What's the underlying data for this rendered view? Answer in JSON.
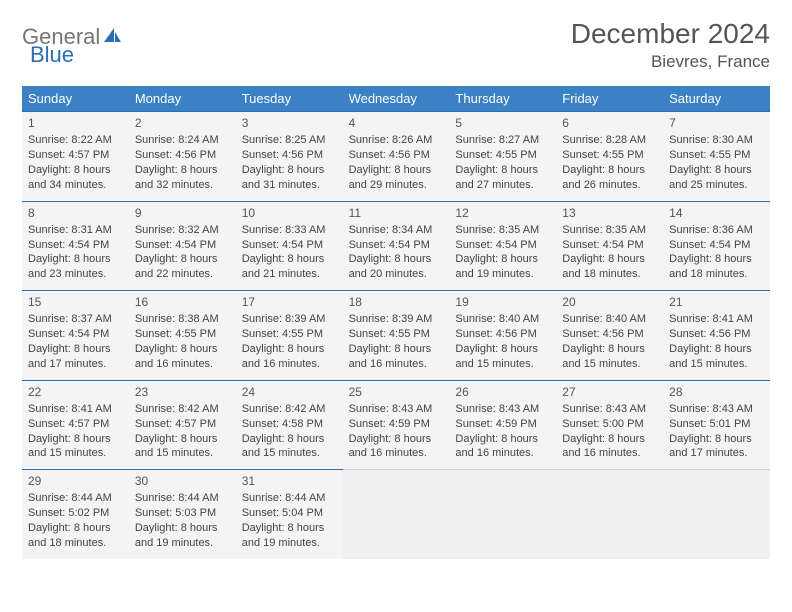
{
  "brand": {
    "part1": "General",
    "part2": "Blue"
  },
  "title": "December 2024",
  "location": "Bievres, France",
  "colors": {
    "header_bg": "#3b82c4",
    "accent": "#2c6fb0",
    "cell_bg": "#f4f4f4",
    "text": "#444444"
  },
  "weekdays": [
    "Sunday",
    "Monday",
    "Tuesday",
    "Wednesday",
    "Thursday",
    "Friday",
    "Saturday"
  ],
  "grid_columns": 7,
  "grid_rows": 5,
  "days": [
    {
      "n": "1",
      "sunrise": "8:22 AM",
      "sunset": "4:57 PM",
      "day_h": "8",
      "day_m": "34"
    },
    {
      "n": "2",
      "sunrise": "8:24 AM",
      "sunset": "4:56 PM",
      "day_h": "8",
      "day_m": "32"
    },
    {
      "n": "3",
      "sunrise": "8:25 AM",
      "sunset": "4:56 PM",
      "day_h": "8",
      "day_m": "31"
    },
    {
      "n": "4",
      "sunrise": "8:26 AM",
      "sunset": "4:56 PM",
      "day_h": "8",
      "day_m": "29"
    },
    {
      "n": "5",
      "sunrise": "8:27 AM",
      "sunset": "4:55 PM",
      "day_h": "8",
      "day_m": "27"
    },
    {
      "n": "6",
      "sunrise": "8:28 AM",
      "sunset": "4:55 PM",
      "day_h": "8",
      "day_m": "26"
    },
    {
      "n": "7",
      "sunrise": "8:30 AM",
      "sunset": "4:55 PM",
      "day_h": "8",
      "day_m": "25"
    },
    {
      "n": "8",
      "sunrise": "8:31 AM",
      "sunset": "4:54 PM",
      "day_h": "8",
      "day_m": "23"
    },
    {
      "n": "9",
      "sunrise": "8:32 AM",
      "sunset": "4:54 PM",
      "day_h": "8",
      "day_m": "22"
    },
    {
      "n": "10",
      "sunrise": "8:33 AM",
      "sunset": "4:54 PM",
      "day_h": "8",
      "day_m": "21"
    },
    {
      "n": "11",
      "sunrise": "8:34 AM",
      "sunset": "4:54 PM",
      "day_h": "8",
      "day_m": "20"
    },
    {
      "n": "12",
      "sunrise": "8:35 AM",
      "sunset": "4:54 PM",
      "day_h": "8",
      "day_m": "19"
    },
    {
      "n": "13",
      "sunrise": "8:35 AM",
      "sunset": "4:54 PM",
      "day_h": "8",
      "day_m": "18"
    },
    {
      "n": "14",
      "sunrise": "8:36 AM",
      "sunset": "4:54 PM",
      "day_h": "8",
      "day_m": "18"
    },
    {
      "n": "15",
      "sunrise": "8:37 AM",
      "sunset": "4:54 PM",
      "day_h": "8",
      "day_m": "17"
    },
    {
      "n": "16",
      "sunrise": "8:38 AM",
      "sunset": "4:55 PM",
      "day_h": "8",
      "day_m": "16"
    },
    {
      "n": "17",
      "sunrise": "8:39 AM",
      "sunset": "4:55 PM",
      "day_h": "8",
      "day_m": "16"
    },
    {
      "n": "18",
      "sunrise": "8:39 AM",
      "sunset": "4:55 PM",
      "day_h": "8",
      "day_m": "16"
    },
    {
      "n": "19",
      "sunrise": "8:40 AM",
      "sunset": "4:56 PM",
      "day_h": "8",
      "day_m": "15"
    },
    {
      "n": "20",
      "sunrise": "8:40 AM",
      "sunset": "4:56 PM",
      "day_h": "8",
      "day_m": "15"
    },
    {
      "n": "21",
      "sunrise": "8:41 AM",
      "sunset": "4:56 PM",
      "day_h": "8",
      "day_m": "15"
    },
    {
      "n": "22",
      "sunrise": "8:41 AM",
      "sunset": "4:57 PM",
      "day_h": "8",
      "day_m": "15"
    },
    {
      "n": "23",
      "sunrise": "8:42 AM",
      "sunset": "4:57 PM",
      "day_h": "8",
      "day_m": "15"
    },
    {
      "n": "24",
      "sunrise": "8:42 AM",
      "sunset": "4:58 PM",
      "day_h": "8",
      "day_m": "15"
    },
    {
      "n": "25",
      "sunrise": "8:43 AM",
      "sunset": "4:59 PM",
      "day_h": "8",
      "day_m": "16"
    },
    {
      "n": "26",
      "sunrise": "8:43 AM",
      "sunset": "4:59 PM",
      "day_h": "8",
      "day_m": "16"
    },
    {
      "n": "27",
      "sunrise": "8:43 AM",
      "sunset": "5:00 PM",
      "day_h": "8",
      "day_m": "16"
    },
    {
      "n": "28",
      "sunrise": "8:43 AM",
      "sunset": "5:01 PM",
      "day_h": "8",
      "day_m": "17"
    },
    {
      "n": "29",
      "sunrise": "8:44 AM",
      "sunset": "5:02 PM",
      "day_h": "8",
      "day_m": "18"
    },
    {
      "n": "30",
      "sunrise": "8:44 AM",
      "sunset": "5:03 PM",
      "day_h": "8",
      "day_m": "19"
    },
    {
      "n": "31",
      "sunrise": "8:44 AM",
      "sunset": "5:04 PM",
      "day_h": "8",
      "day_m": "19"
    }
  ],
  "labels": {
    "sunrise": "Sunrise: ",
    "sunset": "Sunset: ",
    "daylight_a": "Daylight: ",
    "daylight_b": " hours and ",
    "daylight_c": " minutes."
  }
}
